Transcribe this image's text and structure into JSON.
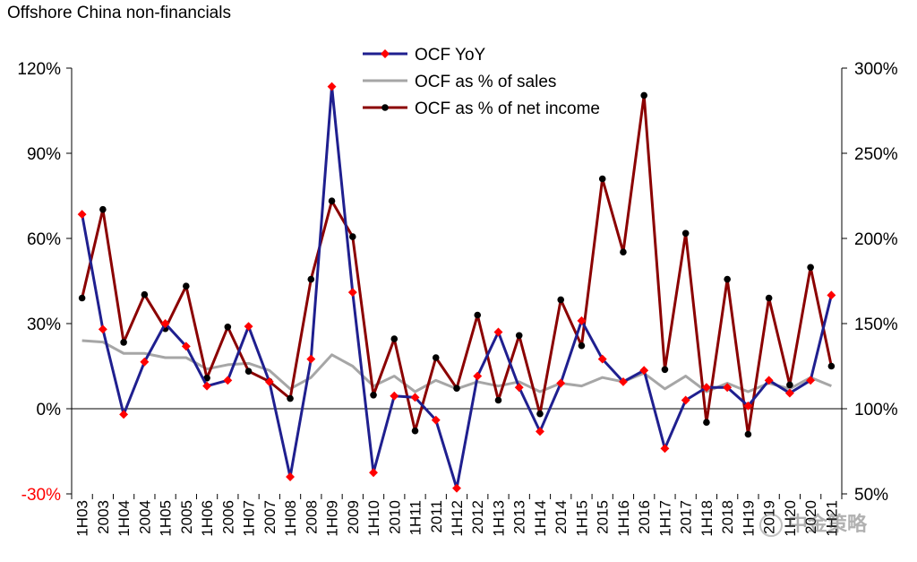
{
  "chart_data": {
    "type": "line",
    "title": "Offshore China non-financials",
    "categories": [
      "1H03",
      "2003",
      "1H04",
      "2004",
      "1H05",
      "2005",
      "1H06",
      "2006",
      "1H07",
      "2007",
      "1H08",
      "2008",
      "1H09",
      "2009",
      "1H10",
      "2010",
      "1H11",
      "2011",
      "1H12",
      "2012",
      "1H13",
      "2013",
      "1H14",
      "2014",
      "1H15",
      "2015",
      "1H16",
      "2016",
      "1H17",
      "2017",
      "1H18",
      "2018",
      "1H19",
      "2019",
      "1H20",
      "2020",
      "1H21"
    ],
    "left_axis": {
      "ticks": [
        "-30%",
        "0%",
        "30%",
        "60%",
        "90%",
        "120%"
      ],
      "tick_values": [
        -30,
        0,
        30,
        60,
        90,
        120
      ],
      "ylim": [
        -30,
        120
      ]
    },
    "right_axis": {
      "ticks": [
        "50%",
        "100%",
        "150%",
        "200%",
        "250%",
        "300%"
      ],
      "tick_values": [
        50,
        100,
        150,
        200,
        250,
        300
      ],
      "ylim": [
        50,
        300
      ]
    },
    "legend_position": "top-center",
    "series": [
      {
        "name": "OCF YoY",
        "axis": "left",
        "color": "#1f1f8f",
        "marker_color": "#ff0000",
        "values": [
          68.5,
          28,
          -2,
          16.5,
          30,
          22,
          8,
          10,
          29,
          9.5,
          -24,
          17.5,
          113.5,
          41,
          -22.5,
          4.5,
          4,
          -4,
          -28,
          11.5,
          27,
          7.5,
          -8,
          9,
          31,
          17.5,
          9.5,
          13.5,
          -14,
          3,
          7.5,
          7.5,
          1,
          10,
          5.5,
          10,
          40
        ]
      },
      {
        "name": "OCF as % of sales",
        "axis": "left",
        "color": "#a6a6a6",
        "values": [
          24,
          23.5,
          19.5,
          19.5,
          18,
          18,
          14,
          15.5,
          16,
          13.5,
          7,
          11,
          19,
          15,
          8,
          11.5,
          6,
          10,
          7,
          9.5,
          8,
          9.5,
          6,
          9,
          8,
          11,
          9.5,
          12.5,
          7,
          11.5,
          6,
          9,
          6,
          9,
          7,
          11,
          8
        ]
      },
      {
        "name": "OCF as % of net income",
        "axis": "right",
        "color": "#8b0000",
        "marker_color": "#000000",
        "values": [
          165,
          217,
          139,
          167,
          147,
          172,
          118,
          148,
          122,
          116,
          106,
          176,
          222,
          201,
          108,
          141,
          87,
          130,
          112,
          155,
          105,
          143,
          97,
          164,
          137,
          235,
          192,
          284,
          123,
          203,
          92,
          176,
          85,
          165,
          114,
          183,
          125
        ]
      }
    ]
  },
  "colors": {
    "ocf_yoy_line": "#1f1f8f",
    "ocf_yoy_marker": "#ff0000",
    "sales_line": "#a6a6a6",
    "net_income_line": "#8b0000",
    "net_income_marker": "#000000",
    "axis": "#000000",
    "neg_tick": "#ff0000"
  },
  "watermark": {
    "text": "中金策略"
  }
}
